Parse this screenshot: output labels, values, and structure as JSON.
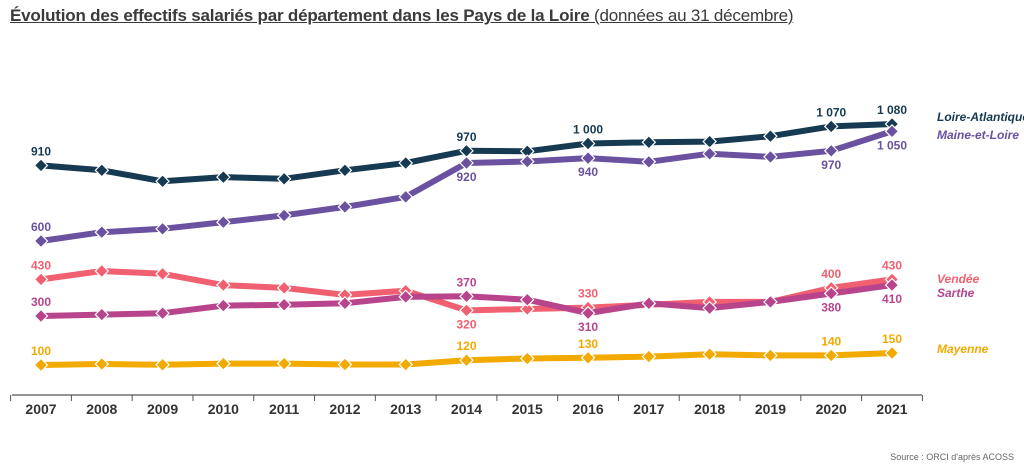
{
  "title": "Évolution des effectifs salariés par département dans les Pays de la Loire",
  "subtitle": "(données au 31 décembre)",
  "source": "Source : ORCI d'après ACOSS",
  "chart_data": {
    "type": "line",
    "categories": [
      "2007",
      "2008",
      "2009",
      "2010",
      "2011",
      "2012",
      "2013",
      "2014",
      "2015",
      "2016",
      "2017",
      "2018",
      "2019",
      "2020",
      "2021"
    ],
    "unit": "thousands (implied scale)",
    "series": [
      {
        "name": "Loire-Atlantique",
        "color": "#163a52",
        "values": [
          910,
          890,
          845,
          862,
          855,
          890,
          920,
          970,
          968,
          1000,
          1005,
          1008,
          1030,
          1070,
          1080
        ],
        "labels": {
          "0": "910",
          "7": "970",
          "9": "1 000",
          "13": "1 070",
          "14": "1 080"
        },
        "label_side": "above"
      },
      {
        "name": "Maine-et-Loire",
        "color": "#6a52a0",
        "values": [
          600,
          636,
          650,
          677,
          705,
          740,
          781,
          920,
          926,
          940,
          925,
          958,
          945,
          970,
          1050
        ],
        "labels": {
          "0": "600",
          "7": "920",
          "9": "940",
          "13": "970",
          "14": "1 050"
        },
        "label_side": "below"
      },
      {
        "name": "Vendée",
        "color": "#f06070",
        "values": [
          430,
          460,
          450,
          410,
          400,
          375,
          390,
          320,
          325,
          330,
          340,
          350,
          350,
          400,
          430
        ],
        "labels": {
          "0": "430",
          "7": "320",
          "9": "330",
          "13": "400",
          "14": "430"
        },
        "label_side": "mixed"
      },
      {
        "name": "Sarthe",
        "color": "#b8448c",
        "values": [
          300,
          305,
          310,
          337,
          340,
          345,
          368,
          370,
          358,
          310,
          345,
          328,
          350,
          380,
          410
        ],
        "labels": {
          "0": "300",
          "7": "370",
          "9": "310",
          "13": "380",
          "14": "410"
        },
        "label_side": "mixed"
      },
      {
        "name": "Mayenne",
        "color": "#f2a900",
        "values": [
          100,
          104,
          101,
          106,
          106,
          102,
          102,
          120,
          127,
          130,
          135,
          145,
          140,
          140,
          150
        ],
        "labels": {
          "0": "100",
          "7": "120",
          "9": "130",
          "13": "140",
          "14": "150"
        },
        "label_side": "above"
      }
    ],
    "legend_placement": "right, next to line ends",
    "grid": false
  }
}
